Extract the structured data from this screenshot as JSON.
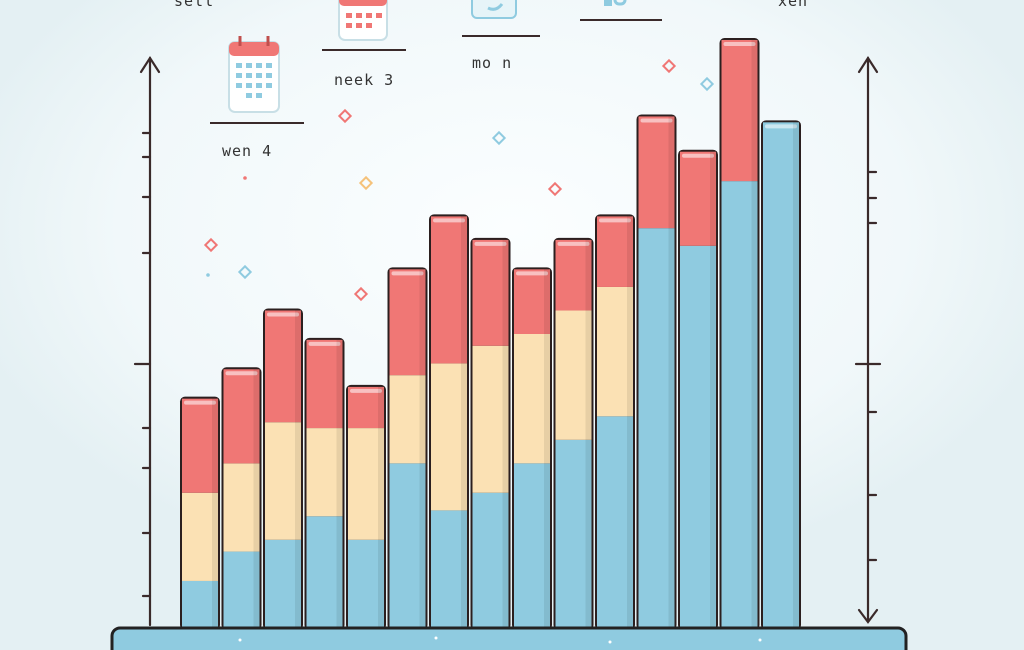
{
  "chart_data": {
    "type": "bar",
    "stacked": true,
    "title": "",
    "xlabel": "",
    "ylabel": "",
    "ylim": [
      0,
      100
    ],
    "grid": false,
    "legend": "none",
    "categories": [
      "",
      "",
      "",
      "",
      "",
      "",
      "",
      "",
      "",
      "",
      "",
      "",
      "",
      "",
      "",
      ""
    ],
    "series": [
      {
        "color": "#8fcbe0",
        "values": [
          8,
          13,
          15,
          19,
          15,
          28,
          20,
          23,
          28,
          32,
          36,
          68,
          65,
          76,
          86,
          0
        ]
      },
      {
        "color": "#fbe1b4",
        "values": [
          15,
          15,
          20,
          15,
          19,
          15,
          25,
          25,
          22,
          22,
          22,
          0,
          0,
          0,
          0,
          0
        ]
      },
      {
        "color": "#f07775",
        "values": [
          16,
          16,
          19,
          15,
          7,
          18,
          25,
          18,
          11,
          12,
          12,
          19,
          16,
          24,
          0,
          0
        ]
      }
    ],
    "annotations": [
      "sell",
      "neek 3",
      "mo n",
      "wen 4",
      "xeh"
    ]
  },
  "colors": {
    "background": "#eef6f8",
    "glow": "#f8fcfd",
    "axis": "#3a2a2a",
    "base": "#8fcbe0",
    "base_border": "#222222",
    "calendar_red": "#f07775",
    "calendar_blue": "#8fcbe0",
    "diamond_red": "#f07775",
    "diamond_blue": "#8fcbe0",
    "diamond_yellow": "#f5c27a"
  },
  "icons": [
    "calendar-icon",
    "calendar-icon",
    "clock-icon",
    "bar-chart-icon"
  ]
}
